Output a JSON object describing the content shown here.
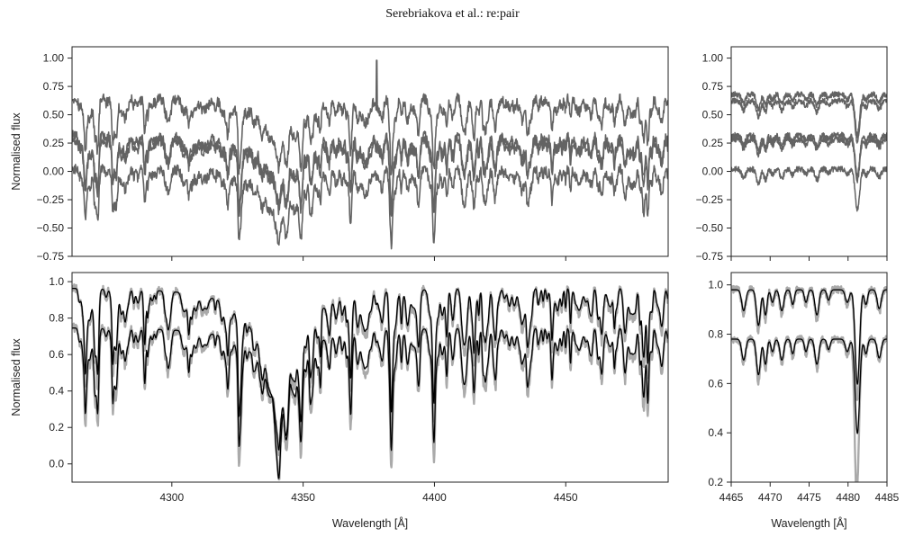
{
  "header": {
    "running_title": "Serebriakova et al.: re:pair"
  },
  "chart_data": [
    {
      "id": "top-left",
      "type": "line",
      "title": "",
      "xlabel": "",
      "ylabel": "Normalised flux",
      "xlim": [
        4262,
        4489
      ],
      "ylim": [
        -0.75,
        1.1
      ],
      "xticks": [
        4300,
        4350,
        4400,
        4450
      ],
      "xticklabels_visible": false,
      "yticks": [
        -0.75,
        -0.5,
        -0.25,
        0.0,
        0.25,
        0.5,
        0.75,
        1.0
      ],
      "yticklabels": [
        "−0.75",
        "−0.50",
        "−0.25",
        "0.00",
        "0.25",
        "0.50",
        "0.75",
        "1.00"
      ],
      "grid": false,
      "line_colors": [
        "#636363"
      ],
      "series_profile": {
        "continuum_levels": [
          0.65,
          0.32,
          0.28,
          0.03
        ],
        "line_center": 4340.5,
        "line_depth": [
          0.55,
          0.55,
          0.55,
          0.6
        ],
        "spike": {
          "x": 4378,
          "y": 0.98
        }
      }
    },
    {
      "id": "top-right",
      "type": "line",
      "title": "",
      "xlabel": "",
      "ylabel": "",
      "xlim": [
        4465,
        4485
      ],
      "ylim": [
        -0.75,
        1.1
      ],
      "xticks": [
        4465,
        4470,
        4475,
        4480,
        4485
      ],
      "xticklabels_visible": false,
      "yticks": [
        -0.75,
        -0.5,
        -0.25,
        0.0,
        0.25,
        0.5,
        0.75,
        1.0
      ],
      "yticklabels": [
        "−0.75",
        "−0.50",
        "−0.25",
        "0.00",
        "0.25",
        "0.50",
        "0.75",
        "1.00"
      ],
      "grid": false,
      "line_colors": [
        "#636363"
      ],
      "series_profile": {
        "continuum_levels": [
          0.68,
          0.62,
          0.32,
          0.28,
          0.02
        ],
        "strong_line": {
          "x": 4481.2,
          "depth": 0.33
        }
      }
    },
    {
      "id": "bottom-left",
      "type": "line",
      "title": "",
      "xlabel": "Wavelength [Å]",
      "ylabel": "Normalised flux",
      "xlim": [
        4262,
        4489
      ],
      "ylim": [
        -0.1,
        1.05
      ],
      "xticks": [
        4300,
        4350,
        4400,
        4450
      ],
      "xticklabels": [
        "4300",
        "4350",
        "4400",
        "4450"
      ],
      "yticks": [
        0.0,
        0.2,
        0.4,
        0.6,
        0.8,
        1.0
      ],
      "yticklabels": [
        "0.0",
        "0.2",
        "0.4",
        "0.6",
        "0.8",
        "1.0"
      ],
      "grid": false,
      "line_colors": [
        "#aaaaaa",
        "#000000"
      ],
      "series_profile": {
        "continuum_levels": [
          0.97,
          0.75
        ],
        "line_center": 4340.5,
        "line_minimum": -0.01
      }
    },
    {
      "id": "bottom-right",
      "type": "line",
      "title": "",
      "xlabel": "Wavelength [Å]",
      "ylabel": "",
      "xlim": [
        4465,
        4485
      ],
      "ylim": [
        0.2,
        1.05
      ],
      "xticks": [
        4465,
        4470,
        4475,
        4480,
        4485
      ],
      "xticklabels": [
        "4465",
        "4470",
        "4475",
        "4480",
        "4485"
      ],
      "yticks": [
        0.2,
        0.4,
        0.6,
        0.8,
        1.0
      ],
      "yticklabels": [
        "0.2",
        "0.4",
        "0.6",
        "0.8",
        "1.0"
      ],
      "grid": false,
      "line_colors": [
        "#aaaaaa",
        "#000000"
      ],
      "series_profile": {
        "continuum_levels": [
          0.98,
          0.78
        ],
        "strong_line": {
          "x": 4481.0,
          "minimum_observed": 0.31,
          "minimum_model": 0.49
        }
      }
    }
  ]
}
